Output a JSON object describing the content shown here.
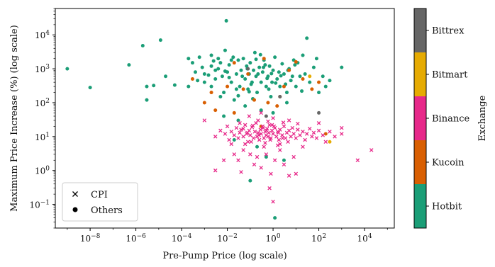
{
  "chart_data": {
    "type": "scatter",
    "xlabel": "Pre-Pump Price (log scale)",
    "ylabel": "Maximum Price Increase (%) (log scale)",
    "x_scale": "log",
    "y_scale": "log",
    "xlim": [
      3e-10,
      200000.0
    ],
    "ylim": [
      0.02,
      60000.0
    ],
    "x_tick_exponents": [
      -8,
      -6,
      -4,
      -2,
      0,
      2,
      4
    ],
    "y_tick_exponents": [
      -1,
      0,
      1,
      2,
      3,
      4
    ],
    "x_tick_labels": [
      "10",
      "10",
      "10",
      "10",
      "10",
      "10",
      "10"
    ],
    "x_tick_sup": [
      "−8",
      "−6",
      "−4",
      "−2",
      "0",
      "2",
      "4"
    ],
    "y_tick_labels": [
      "10",
      "10",
      "10",
      "10",
      "10",
      "10"
    ],
    "y_tick_sup": [
      "−1",
      "0",
      "1",
      "2",
      "3",
      "4"
    ],
    "grid": false,
    "legend": {
      "placement": "bottom-left",
      "entries": [
        {
          "label": "CPI",
          "marker": "x"
        },
        {
          "label": "Others",
          "marker": "o"
        }
      ]
    },
    "colorbar": {
      "label": "Exchange",
      "categories": [
        {
          "name": "Hotbit",
          "color": "#1b9e77"
        },
        {
          "name": "Kucoin",
          "color": "#d95f02"
        },
        {
          "name": "Binance",
          "color": "#e7298a"
        },
        {
          "name": "Bitmart",
          "color": "#e6ab02"
        },
        {
          "name": "Bittrex",
          "color": "#666666"
        }
      ]
    },
    "series": [
      {
        "exchange": "Hotbit",
        "marker": "o",
        "color": "#1b9e77",
        "points": [
          [
            1e-09,
            1000
          ],
          [
            1e-08,
            280
          ],
          [
            5e-07,
            1300
          ],
          [
            2e-06,
            4800
          ],
          [
            3e-06,
            300
          ],
          [
            1.2e-05,
            7000
          ],
          [
            6e-06,
            320
          ],
          [
            2e-05,
            600
          ],
          [
            5e-05,
            330
          ],
          [
            3e-06,
            120
          ],
          [
            0.0002,
            300
          ],
          [
            0.0002,
            2000
          ],
          [
            0.0003,
            1500
          ],
          [
            0.0004,
            800
          ],
          [
            0.0006,
            2200
          ],
          [
            0.001,
            700
          ],
          [
            0.001,
            400
          ],
          [
            0.002,
            1200
          ],
          [
            0.002,
            300
          ],
          [
            0.003,
            900
          ],
          [
            0.003,
            500
          ],
          [
            0.004,
            2000
          ],
          [
            0.005,
            150
          ],
          [
            0.005,
            1500
          ],
          [
            0.006,
            600
          ],
          [
            0.007,
            200
          ],
          [
            0.008,
            3500
          ],
          [
            0.009,
            26000
          ],
          [
            0.01,
            800
          ],
          [
            0.012,
            1300
          ],
          [
            0.015,
            400
          ],
          [
            0.018,
            2200
          ],
          [
            0.02,
            120
          ],
          [
            0.025,
            700
          ],
          [
            0.03,
            1800
          ],
          [
            0.035,
            300
          ],
          [
            0.04,
            900
          ],
          [
            0.05,
            2000
          ],
          [
            0.06,
            500
          ],
          [
            0.07,
            1200
          ],
          [
            0.08,
            250
          ],
          [
            0.09,
            700
          ],
          [
            0.1,
            1500
          ],
          [
            0.12,
            400
          ],
          [
            0.14,
            900
          ],
          [
            0.16,
            3000
          ],
          [
            0.18,
            600
          ],
          [
            0.2,
            200
          ],
          [
            0.25,
            1100
          ],
          [
            0.3,
            400
          ],
          [
            0.35,
            800
          ],
          [
            0.4,
            1800
          ],
          [
            0.5,
            300
          ],
          [
            0.6,
            600
          ],
          [
            0.7,
            1200
          ],
          [
            0.8,
            150
          ],
          [
            0.9,
            400
          ],
          [
            1.0,
            900
          ],
          [
            1.2,
            2200
          ],
          [
            1.5,
            500
          ],
          [
            2,
            300
          ],
          [
            2.5,
            1400
          ],
          [
            3,
            700
          ],
          [
            4,
            200
          ],
          [
            5,
            1000
          ],
          [
            6,
            450
          ],
          [
            8,
            1800
          ],
          [
            10,
            300
          ],
          [
            15,
            600
          ],
          [
            20,
            2500
          ],
          [
            30,
            8000
          ],
          [
            40,
            400
          ],
          [
            60,
            1100
          ],
          [
            80,
            2000
          ],
          [
            100,
            200
          ],
          [
            150,
            600
          ],
          [
            200,
            300
          ],
          [
            300,
            450
          ],
          [
            1000,
            1100
          ],
          [
            0.1,
            0.5
          ],
          [
            1.2,
            0.04
          ],
          [
            0.02,
            8
          ],
          [
            0.5,
            2.5
          ],
          [
            0.3,
            60
          ],
          [
            0.06,
            80
          ],
          [
            0.007,
            40
          ],
          [
            0.004,
            1000
          ],
          [
            0.015,
            1800
          ],
          [
            0.025,
            250
          ],
          [
            0.045,
            600
          ],
          [
            0.075,
            1000
          ],
          [
            0.11,
            350
          ],
          [
            0.22,
            700
          ],
          [
            0.45,
            1300
          ],
          [
            0.65,
            250
          ],
          [
            1.8,
            800
          ],
          [
            3.5,
            350
          ],
          [
            7,
            600
          ],
          [
            12,
            1500
          ],
          [
            0.012,
            550
          ],
          [
            0.0005,
            450
          ],
          [
            0.0008,
            1100
          ],
          [
            0.0015,
            650
          ],
          [
            0.0025,
            1700
          ],
          [
            0.008,
            850
          ],
          [
            0.18,
            1900
          ],
          [
            0.28,
            2600
          ],
          [
            0.38,
            1100
          ],
          [
            0.55,
            520
          ],
          [
            0.85,
            720
          ],
          [
            1.3,
            380
          ],
          [
            2.2,
            620
          ],
          [
            4.5,
            900
          ],
          [
            9,
            1300
          ],
          [
            18,
            220
          ],
          [
            25,
            700
          ],
          [
            0.03,
            160
          ],
          [
            0.09,
            210
          ],
          [
            0.13,
            130
          ],
          [
            0.002,
            2500
          ],
          [
            4,
            100
          ],
          [
            1,
            50
          ],
          [
            0.03,
            30
          ],
          [
            0.2,
            5
          ],
          [
            3,
            2
          ]
        ]
      },
      {
        "exchange": "Kucoin",
        "marker": "o",
        "color": "#d95f02",
        "points": [
          [
            0.0003,
            500
          ],
          [
            0.002,
            200
          ],
          [
            0.001,
            100
          ],
          [
            0.02,
            1500
          ],
          [
            0.05,
            250
          ],
          [
            0.08,
            700
          ],
          [
            0.15,
            120
          ],
          [
            0.3,
            20
          ],
          [
            0.6,
            100
          ],
          [
            1.5,
            80
          ],
          [
            3,
            300
          ],
          [
            5,
            900
          ],
          [
            10,
            1600
          ],
          [
            20,
            500
          ],
          [
            50,
            250
          ],
          [
            100,
            400
          ],
          [
            200,
            12
          ],
          [
            0.01,
            300
          ],
          [
            0.4,
            2000
          ],
          [
            2,
            150
          ],
          [
            0.003,
            60
          ],
          [
            0.02,
            50
          ]
        ]
      },
      {
        "exchange": "Binance",
        "marker": "x",
        "color": "#e7298a",
        "points": [
          [
            0.003,
            10
          ],
          [
            0.005,
            15
          ],
          [
            0.008,
            12
          ],
          [
            0.01,
            20
          ],
          [
            0.012,
            8
          ],
          [
            0.015,
            14
          ],
          [
            0.02,
            11
          ],
          [
            0.025,
            18
          ],
          [
            0.03,
            9
          ],
          [
            0.035,
            13
          ],
          [
            0.04,
            16
          ],
          [
            0.05,
            10
          ],
          [
            0.06,
            22
          ],
          [
            0.07,
            12
          ],
          [
            0.08,
            7
          ],
          [
            0.09,
            15
          ],
          [
            0.1,
            11
          ],
          [
            0.12,
            19
          ],
          [
            0.14,
            9
          ],
          [
            0.16,
            14
          ],
          [
            0.18,
            25
          ],
          [
            0.2,
            10
          ],
          [
            0.22,
            13
          ],
          [
            0.25,
            8
          ],
          [
            0.28,
            16
          ],
          [
            0.3,
            12
          ],
          [
            0.35,
            20
          ],
          [
            0.4,
            9
          ],
          [
            0.45,
            14
          ],
          [
            0.5,
            11
          ],
          [
            0.55,
            17
          ],
          [
            0.6,
            10
          ],
          [
            0.65,
            13
          ],
          [
            0.7,
            22
          ],
          [
            0.8,
            9
          ],
          [
            0.9,
            15
          ],
          [
            1.0,
            12
          ],
          [
            1.2,
            18
          ],
          [
            1.4,
            10
          ],
          [
            1.6,
            14
          ],
          [
            1.8,
            8
          ],
          [
            2,
            16
          ],
          [
            2.5,
            11
          ],
          [
            3,
            20
          ],
          [
            3.5,
            9
          ],
          [
            4,
            13
          ],
          [
            5,
            15
          ],
          [
            6,
            10
          ],
          [
            7,
            18
          ],
          [
            8,
            12
          ],
          [
            10,
            9
          ],
          [
            12,
            16
          ],
          [
            15,
            11
          ],
          [
            20,
            14
          ],
          [
            25,
            8
          ],
          [
            30,
            12
          ],
          [
            40,
            17
          ],
          [
            50,
            10
          ],
          [
            60,
            13
          ],
          [
            80,
            9
          ],
          [
            100,
            15
          ],
          [
            150,
            11
          ],
          [
            200,
            7
          ],
          [
            300,
            14
          ],
          [
            500,
            10
          ],
          [
            1000,
            18
          ],
          [
            0.02,
            3
          ],
          [
            0.03,
            2
          ],
          [
            0.05,
            4
          ],
          [
            0.1,
            3
          ],
          [
            0.15,
            1.5
          ],
          [
            0.2,
            2.5
          ],
          [
            0.3,
            1.2
          ],
          [
            0.5,
            3
          ],
          [
            0.8,
            0.8
          ],
          [
            1.2,
            2
          ],
          [
            2,
            4
          ],
          [
            3,
            1.5
          ],
          [
            5,
            0.7
          ],
          [
            8,
            2.5
          ],
          [
            0.04,
            0.9
          ],
          [
            0.003,
            1
          ],
          [
            0.7,
            0.3
          ],
          [
            1,
            0.12
          ],
          [
            10,
            0.8
          ],
          [
            0.007,
            2
          ],
          [
            0.06,
            6
          ],
          [
            0.4,
            5
          ],
          [
            2,
            6
          ],
          [
            20,
            5
          ],
          [
            100,
            25
          ],
          [
            1000,
            12
          ],
          [
            20000,
            4
          ],
          [
            5000,
            2
          ],
          [
            0.001,
            30
          ],
          [
            0.3,
            50
          ],
          [
            1,
            35
          ],
          [
            5,
            30
          ],
          [
            0.09,
            40
          ],
          [
            0.6,
            28
          ],
          [
            0.015,
            6
          ],
          [
            0.11,
            7
          ],
          [
            0.45,
            6.5
          ],
          [
            1.6,
            5.5
          ],
          [
            4.5,
            7
          ],
          [
            0.035,
            25
          ],
          [
            0.22,
            30
          ],
          [
            0.9,
            22
          ],
          [
            2.8,
            26
          ],
          [
            12,
            24
          ],
          [
            0.05,
            17
          ],
          [
            0.075,
            13
          ],
          [
            0.13,
            21
          ],
          [
            0.24,
            11
          ],
          [
            0.37,
            18
          ],
          [
            0.52,
            15
          ],
          [
            0.75,
            8
          ],
          [
            1.1,
            20
          ],
          [
            1.7,
            13
          ],
          [
            2.6,
            9
          ]
        ]
      },
      {
        "exchange": "Bitmart",
        "marker": "o",
        "color": "#e6ab02",
        "points": [
          [
            40,
            600
          ],
          [
            300,
            7
          ]
        ]
      },
      {
        "exchange": "Bittrex",
        "marker": "o",
        "color": "#666666",
        "points": [
          [
            0.5,
            40
          ],
          [
            2,
            150
          ],
          [
            100,
            50
          ],
          [
            0.08,
            1000
          ]
        ]
      }
    ]
  }
}
